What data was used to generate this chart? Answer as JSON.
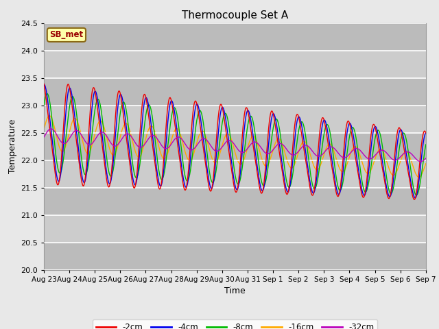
{
  "title": "Thermocouple Set A",
  "xlabel": "Time",
  "ylabel": "Temperature",
  "ylim": [
    20.0,
    24.5
  ],
  "yticks": [
    20.0,
    20.5,
    21.0,
    21.5,
    22.0,
    22.5,
    23.0,
    23.5,
    24.0,
    24.5
  ],
  "bg_color": "#e8e8e8",
  "plot_bg_color": "#cccccc",
  "grid_color": "#e8e8e8",
  "annotation_text": "SB_met",
  "annotation_bg": "#ffffaa",
  "annotation_border": "#8b6914",
  "annotation_text_color": "#990000",
  "colors": {
    "-2cm": "#ee0000",
    "-4cm": "#0000ee",
    "-8cm": "#00bb00",
    "-16cm": "#ffaa00",
    "-32cm": "#bb00bb"
  },
  "legend_labels": [
    "-2cm",
    "-4cm",
    "-8cm",
    "-16cm",
    "-32cm"
  ],
  "n_points": 2000,
  "t_start": 0,
  "t_end": 15,
  "xticklabels": [
    "Aug 23",
    "Aug 24",
    "Aug 25",
    "Aug 26",
    "Aug 27",
    "Aug 28",
    "Aug 29",
    "Aug 30",
    "Aug 31",
    "Sep 1",
    "Sep 2",
    "Sep 3",
    "Sep 4",
    "Sep 5",
    "Sep 6",
    "Sep 7"
  ],
  "xtick_positions": [
    0,
    1,
    2,
    3,
    4,
    5,
    6,
    7,
    8,
    9,
    10,
    11,
    12,
    13,
    14,
    15
  ]
}
